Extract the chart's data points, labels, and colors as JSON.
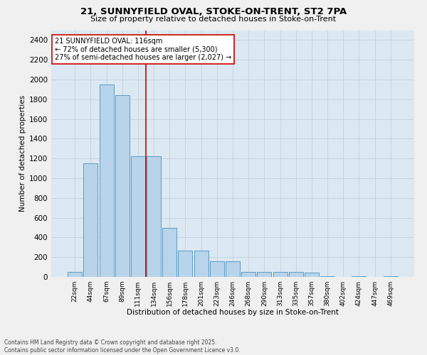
{
  "title_line1": "21, SUNNYFIELD OVAL, STOKE-ON-TRENT, ST2 7PA",
  "title_line2": "Size of property relative to detached houses in Stoke-on-Trent",
  "xlabel": "Distribution of detached houses by size in Stoke-on-Trent",
  "ylabel": "Number of detached properties",
  "categories": [
    "22sqm",
    "44sqm",
    "67sqm",
    "89sqm",
    "111sqm",
    "134sqm",
    "156sqm",
    "178sqm",
    "201sqm",
    "223sqm",
    "246sqm",
    "268sqm",
    "290sqm",
    "313sqm",
    "335sqm",
    "357sqm",
    "380sqm",
    "402sqm",
    "424sqm",
    "447sqm",
    "469sqm"
  ],
  "values": [
    50,
    1150,
    1950,
    1840,
    1220,
    1220,
    500,
    265,
    265,
    160,
    160,
    50,
    50,
    50,
    50,
    40,
    5,
    0,
    5,
    0,
    5
  ],
  "bar_color": "#b8d4ea",
  "bar_edge_color": "#5a9dc8",
  "vline_x": 4.5,
  "vline_color": "#cc0000",
  "annotation_text": "21 SUNNYFIELD OVAL: 116sqm\n← 72% of detached houses are smaller (5,300)\n27% of semi-detached houses are larger (2,027) →",
  "annotation_box_facecolor": "#ffffff",
  "annotation_box_edgecolor": "#cc0000",
  "ylim": [
    0,
    2500
  ],
  "yticks": [
    0,
    200,
    400,
    600,
    800,
    1000,
    1200,
    1400,
    1600,
    1800,
    2000,
    2200,
    2400
  ],
  "grid_color": "#c0ccd8",
  "plot_bg_color": "#dce8f2",
  "fig_bg_color": "#f0f0f0",
  "footer_line1": "Contains HM Land Registry data © Crown copyright and database right 2025.",
  "footer_line2": "Contains public sector information licensed under the Open Government Licence v3.0."
}
